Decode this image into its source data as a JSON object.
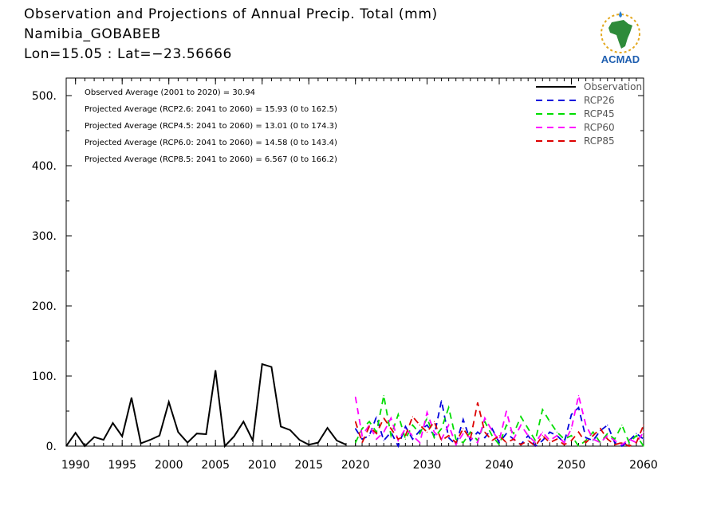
{
  "header": {
    "title": "Observation and Projections of Annual Precip. Total (mm)",
    "station": "Namibia_GOBABEB",
    "coords": "Lon=15.05 : Lat=−23.56666"
  },
  "logo": {
    "text": "ACMAD",
    "icon": "africa-map-icon"
  },
  "colors": {
    "observation": "#000000",
    "rcp26": "#0000dd",
    "rcp45": "#00dd00",
    "rcp60": "#ff00ff",
    "rcp85": "#dd0000"
  },
  "chart_data": {
    "type": "line",
    "title": "Observation and Projections of Annual Precip. Total (mm)",
    "xlim": [
      1989,
      2060
    ],
    "ylim": [
      0,
      525
    ],
    "y_ticks": [
      0,
      100,
      200,
      300,
      400,
      500
    ],
    "y_tick_labels": [
      "0.",
      "100.",
      "200.",
      "300.",
      "400.",
      "500."
    ],
    "x_ticks": [
      1990,
      1995,
      2000,
      2005,
      2010,
      2015,
      2020,
      2030,
      2040,
      2050,
      2060
    ],
    "x_tick_labels": [
      "1990",
      "1995",
      "2000",
      "2005",
      "2010",
      "2015",
      "2020",
      "2030",
      "2040",
      "2050",
      "2060"
    ],
    "legend_position": "top-right",
    "annotations": [
      "Observed Average (2001 to 2020) = 30.94",
      "Projected Average (RCP2.6: 2041 to 2060) = 15.93 (0 to 162.5)",
      "Projected Average (RCP4.5: 2041 to 2060) = 13.01 (0 to 174.3)",
      "Projected Average (RCP6.0: 2041 to 2060) = 14.58 (0 to 143.4)",
      "Projected Average (RCP8.5: 2041 to 2060) = 6.567 (0 to 166.2)"
    ],
    "series": [
      {
        "name": "Observation",
        "style": "solid",
        "x": [
          1989,
          1990,
          1991,
          1992,
          1993,
          1994,
          1995,
          1996,
          1997,
          1998,
          1999,
          2000,
          2001,
          2002,
          2003,
          2004,
          2005,
          2006,
          2007,
          2008,
          2009,
          2010,
          2011,
          2012,
          2013,
          2014,
          2015,
          2016,
          2017,
          2018,
          2019
        ],
        "values": [
          0,
          19,
          0,
          13,
          9,
          33,
          14,
          69,
          4,
          9,
          15,
          63,
          20,
          5,
          18,
          17,
          108,
          0,
          14,
          35,
          8,
          117,
          113,
          28,
          23,
          9,
          2,
          5,
          26,
          8,
          2
        ]
      },
      {
        "name": "RCP26",
        "style": "dashed",
        "x": [
          2020,
          2021,
          2022,
          2023,
          2024,
          2025,
          2026,
          2027,
          2028,
          2029,
          2030,
          2031,
          2032,
          2033,
          2034,
          2035,
          2036,
          2037,
          2038,
          2039,
          2040,
          2041,
          2042,
          2043,
          2044,
          2045,
          2046,
          2047,
          2048,
          2049,
          2050,
          2051,
          2052,
          2053,
          2054,
          2055,
          2056,
          2057,
          2058,
          2059,
          2060
        ],
        "values": [
          25,
          10,
          15,
          42,
          8,
          20,
          0,
          28,
          10,
          22,
          30,
          15,
          65,
          12,
          2,
          38,
          8,
          20,
          12,
          25,
          5,
          18,
          10,
          2,
          15,
          0,
          8,
          20,
          15,
          5,
          45,
          55,
          12,
          8,
          22,
          30,
          5,
          0,
          8,
          18,
          10
        ]
      },
      {
        "name": "RCP45",
        "style": "dashed",
        "x": [
          2020,
          2021,
          2022,
          2023,
          2024,
          2025,
          2026,
          2027,
          2028,
          2029,
          2030,
          2031,
          2032,
          2033,
          2034,
          2035,
          2036,
          2037,
          2038,
          2039,
          2040,
          2041,
          2042,
          2043,
          2044,
          2045,
          2046,
          2047,
          2048,
          2049,
          2050,
          2051,
          2052,
          2053,
          2054,
          2055,
          2056,
          2057,
          2058,
          2059,
          2060
        ],
        "values": [
          5,
          25,
          35,
          20,
          72,
          15,
          45,
          10,
          30,
          18,
          40,
          12,
          25,
          55,
          10,
          5,
          20,
          8,
          35,
          15,
          2,
          30,
          18,
          42,
          25,
          8,
          52,
          35,
          20,
          10,
          15,
          0,
          8,
          20,
          5,
          18,
          10,
          30,
          5,
          15,
          0
        ]
      },
      {
        "name": "RCP60",
        "style": "dashed",
        "x": [
          2020,
          2021,
          2022,
          2023,
          2024,
          2025,
          2026,
          2027,
          2028,
          2029,
          2030,
          2031,
          2032,
          2033,
          2034,
          2035,
          2036,
          2037,
          2038,
          2039,
          2040,
          2041,
          2042,
          2043,
          2044,
          2045,
          2046,
          2047,
          2048,
          2049,
          2050,
          2051,
          2052,
          2053,
          2054,
          2055,
          2056,
          2057,
          2058,
          2059,
          2060
        ],
        "values": [
          70,
          15,
          30,
          10,
          20,
          40,
          8,
          25,
          15,
          5,
          48,
          20,
          10,
          30,
          2,
          18,
          12,
          5,
          40,
          22,
          8,
          50,
          10,
          30,
          15,
          5,
          20,
          8,
          15,
          5,
          25,
          72,
          30,
          10,
          5,
          15,
          8,
          2,
          10,
          5,
          20
        ]
      },
      {
        "name": "RCP85",
        "style": "dashed",
        "x": [
          2020,
          2021,
          2022,
          2023,
          2024,
          2025,
          2026,
          2027,
          2028,
          2029,
          2030,
          2031,
          2032,
          2033,
          2034,
          2035,
          2036,
          2037,
          2038,
          2039,
          2040,
          2041,
          2042,
          2043,
          2044,
          2045,
          2046,
          2047,
          2048,
          2049,
          2050,
          2051,
          2052,
          2053,
          2054,
          2055,
          2056,
          2057,
          2058,
          2059,
          2060
        ],
        "values": [
          35,
          5,
          28,
          18,
          40,
          25,
          10,
          15,
          42,
          30,
          20,
          35,
          8,
          15,
          5,
          25,
          10,
          62,
          20,
          8,
          15,
          5,
          10,
          2,
          8,
          0,
          15,
          5,
          10,
          2,
          8,
          20,
          5,
          15,
          25,
          10,
          2,
          5,
          0,
          5,
          30
        ]
      }
    ]
  }
}
